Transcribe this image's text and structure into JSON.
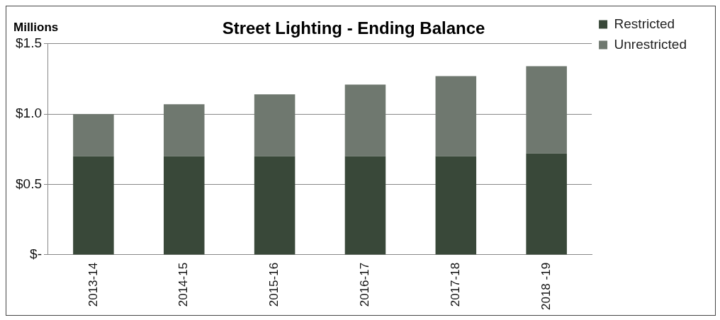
{
  "chart_data": {
    "type": "bar",
    "title": "Street Lighting - Ending Balance",
    "ylabel": "Millions",
    "stacked": true,
    "categories": [
      "2013-14",
      "2014-15",
      "2015-16",
      "2016-17",
      "2017-18",
      "2018 -19"
    ],
    "series": [
      {
        "name": "Restricted",
        "color": "#394839",
        "values": [
          0.7,
          0.7,
          0.7,
          0.7,
          0.7,
          0.72
        ]
      },
      {
        "name": "Unrestricted",
        "color": "#6f786f",
        "values": [
          0.3,
          0.37,
          0.44,
          0.51,
          0.57,
          0.62
        ]
      }
    ],
    "ylim": [
      0,
      1.5
    ],
    "yticks": [
      {
        "value": 0,
        "label": "$-"
      },
      {
        "value": 0.5,
        "label": "$0.5"
      },
      {
        "value": 1,
        "label": "$1.0"
      },
      {
        "value": 1.5,
        "label": "$1.5"
      }
    ],
    "grid": "y",
    "legend": "top right"
  }
}
